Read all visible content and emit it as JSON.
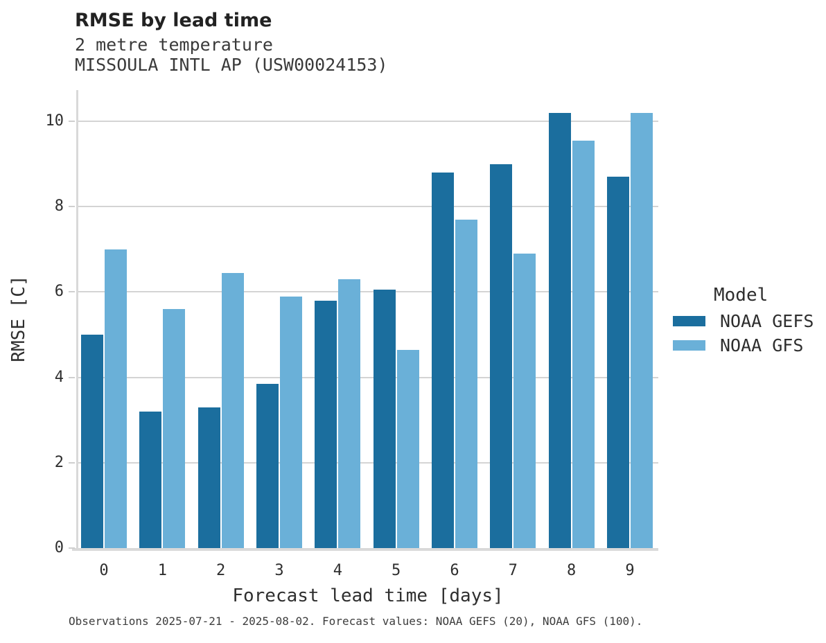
{
  "header": {
    "title": "RMSE by lead time",
    "subtitle1": "2 metre temperature",
    "subtitle2": "MISSOULA INTL AP (USW00024153)"
  },
  "chart_data": {
    "type": "bar",
    "title": "RMSE by lead time",
    "subtitle": "2 metre temperature — MISSOULA INTL AP (USW00024153)",
    "categories": [
      "0",
      "1",
      "2",
      "3",
      "4",
      "5",
      "6",
      "7",
      "8",
      "9"
    ],
    "series": [
      {
        "name": "NOAA GEFS",
        "color": "#1b6e9e",
        "values": [
          5.0,
          3.2,
          3.3,
          3.85,
          5.8,
          6.05,
          8.8,
          9.0,
          10.2,
          8.7
        ]
      },
      {
        "name": "NOAA GFS",
        "color": "#6ab0d8",
        "values": [
          7.0,
          5.6,
          6.45,
          5.9,
          6.3,
          4.65,
          7.7,
          6.9,
          9.55,
          10.2
        ]
      }
    ],
    "xlabel": "Forecast lead time [days]",
    "ylabel": "RMSE [C]",
    "yticks": [
      0,
      2,
      4,
      6,
      8,
      10
    ],
    "ylim": [
      0,
      10.73
    ],
    "grid": "horizontal",
    "legend_position": "right"
  },
  "legend": {
    "title": "Model",
    "items": [
      {
        "label": "NOAA GEFS",
        "color": "#1b6e9e"
      },
      {
        "label": "NOAA GFS",
        "color": "#6ab0d8"
      }
    ]
  },
  "footer": {
    "caption": "Observations 2025-07-21 - 2025-08-02. Forecast values: NOAA GEFS (20), NOAA GFS (100)."
  },
  "colors": {
    "gefs": "#1b6e9e",
    "gfs": "#6ab0d8",
    "gridline": "#d4d4d4",
    "spine": "#d9d9d9",
    "title_text": "#222222",
    "label_text": "#2e2e2e"
  }
}
